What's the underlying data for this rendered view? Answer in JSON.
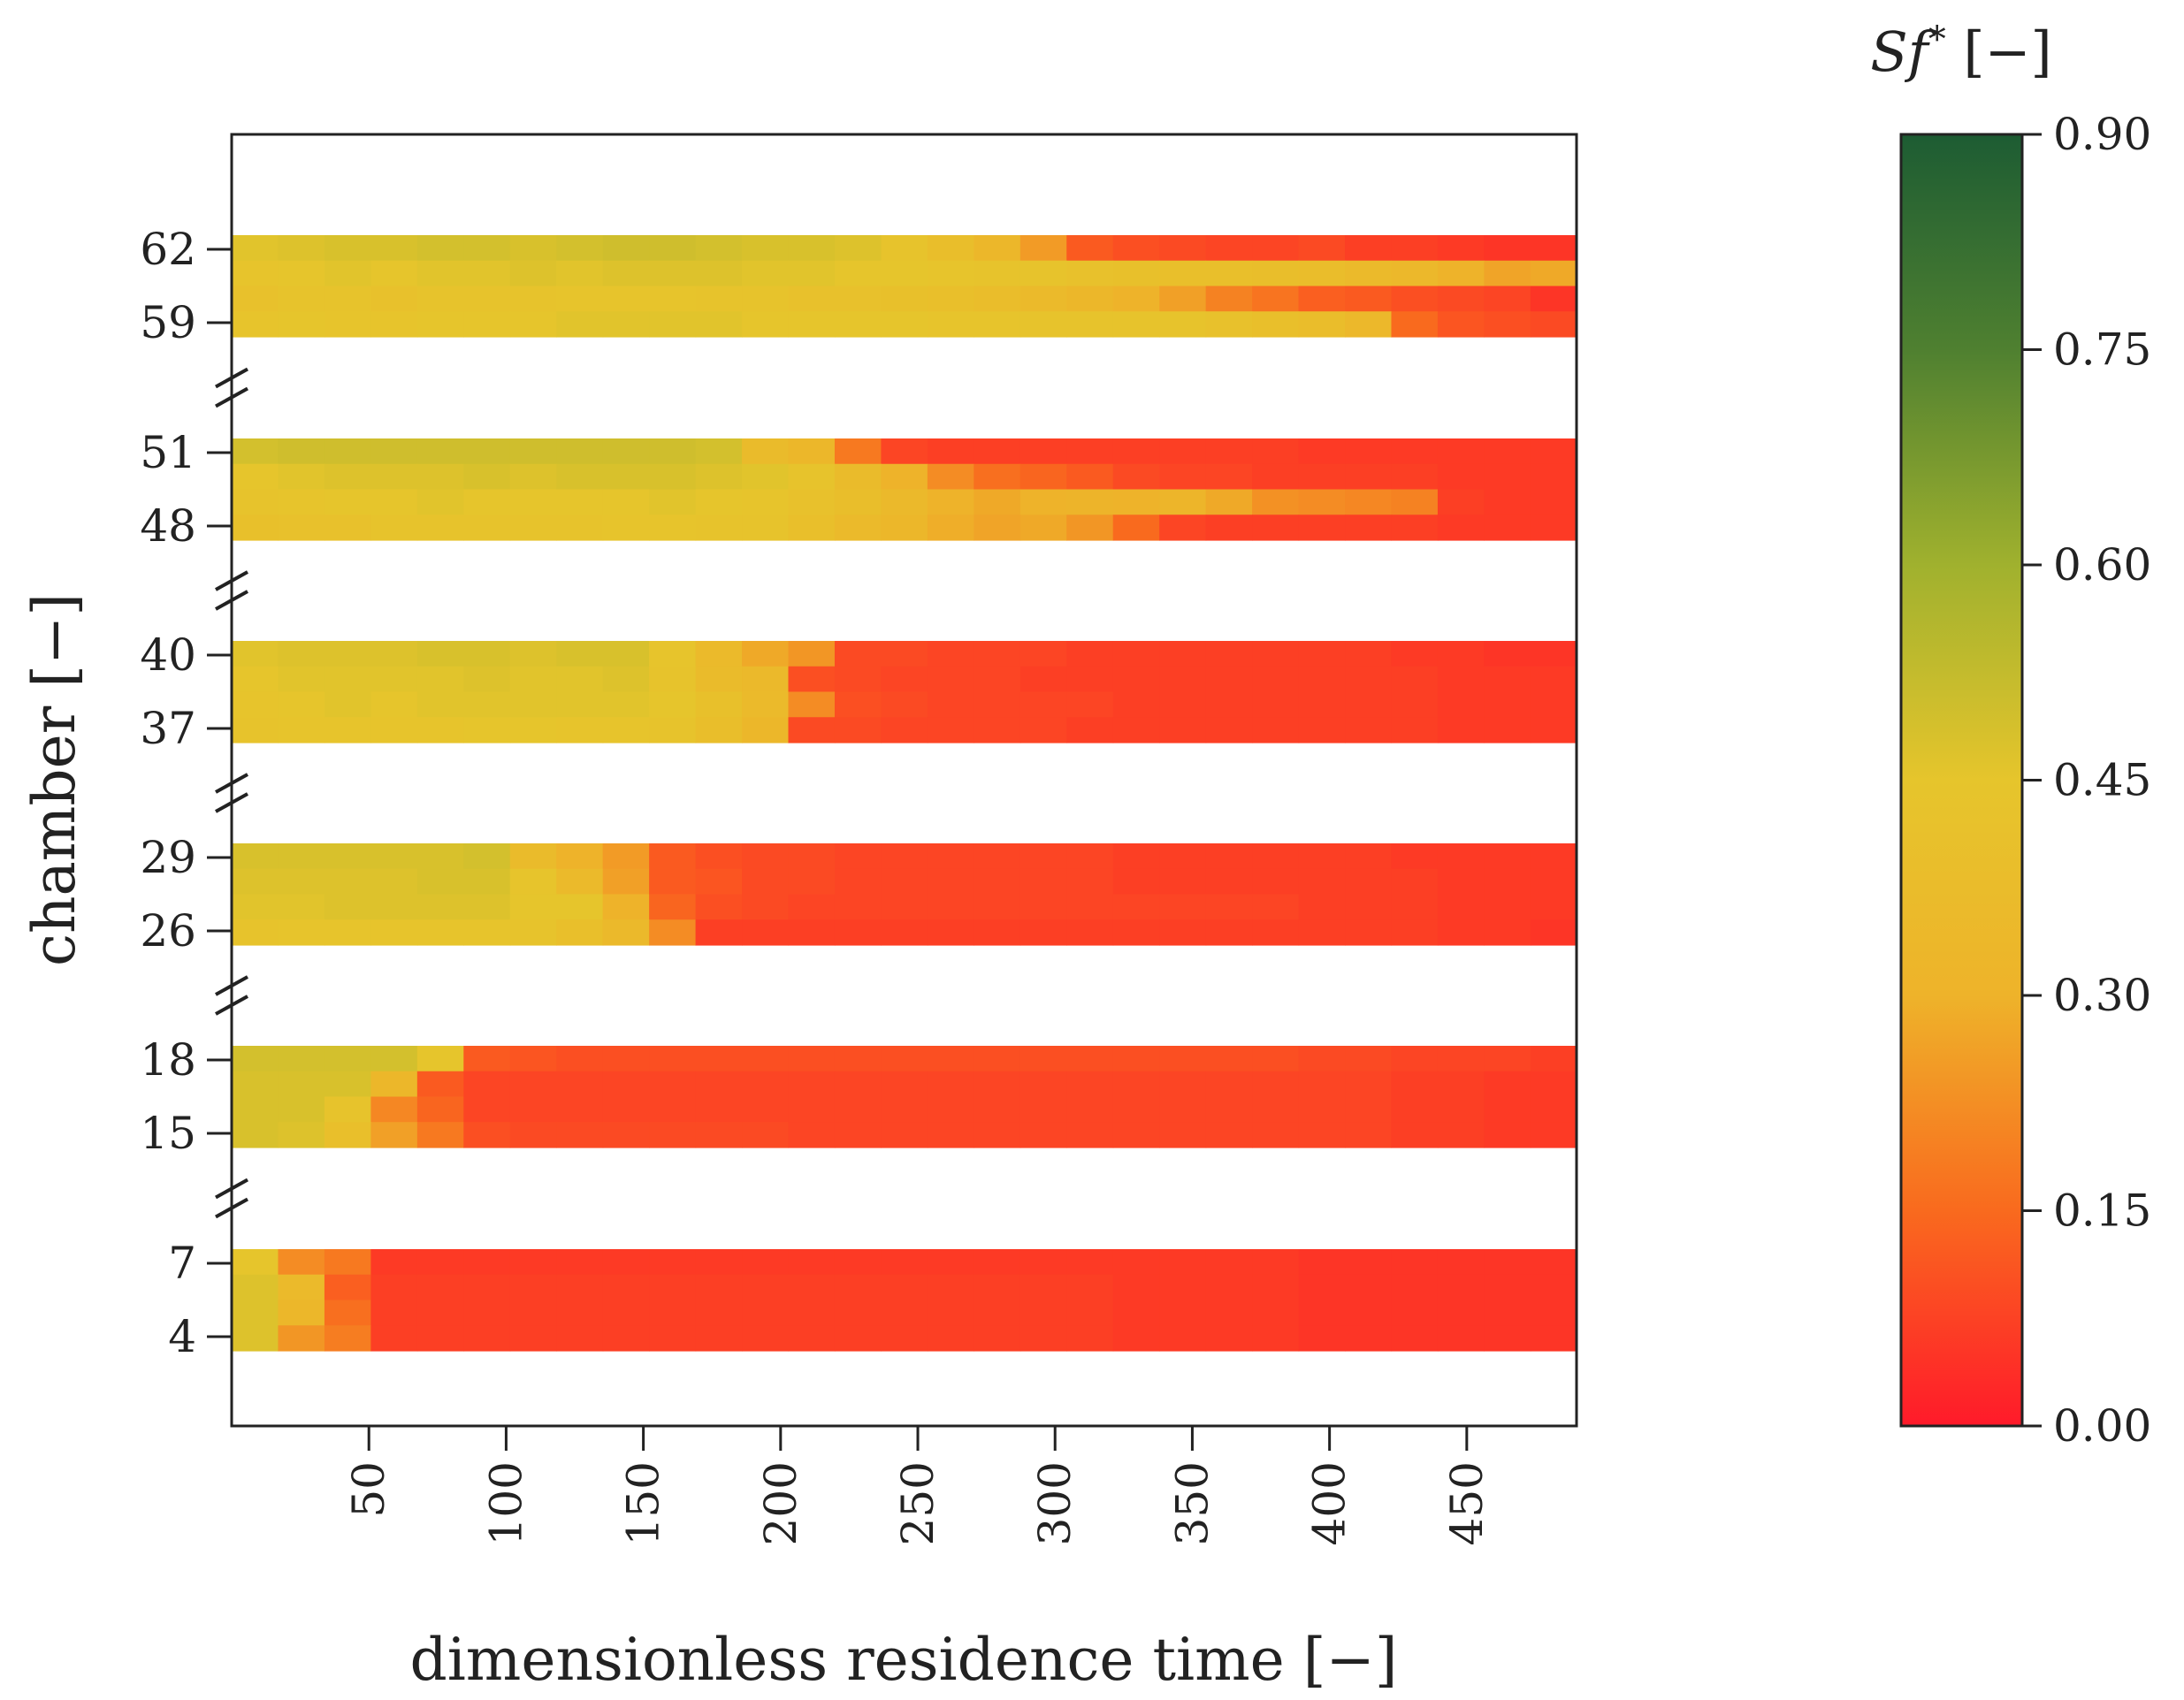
{
  "chart_data": {
    "type": "heatmap",
    "title": "",
    "xlabel": "dimensionless residence time [−]",
    "ylabel": "chamber [−]",
    "xlim": [
      0,
      490
    ],
    "x_ticks": [
      50,
      100,
      150,
      200,
      250,
      300,
      350,
      400,
      450
    ],
    "x_tick_labels": [
      "50",
      "100",
      "150",
      "200",
      "250",
      "300",
      "350",
      "400",
      "450"
    ],
    "bins": 29,
    "bin_width": 16.9,
    "colorbar": {
      "label_main": "Sf",
      "label_sup": "*",
      "label_unit": " [−]",
      "range": [
        0,
        0.9
      ],
      "ticks": [
        0.0,
        0.15,
        0.3,
        0.45,
        0.6,
        0.75,
        0.9
      ],
      "tick_labels": [
        "0.00",
        "0.15",
        "0.30",
        "0.45",
        "0.60",
        "0.75",
        "0.90"
      ],
      "colors": [
        "#ff1a2a",
        "#f96a1e",
        "#eeb32a",
        "#e6c52c",
        "#a0b12e",
        "#4f8030",
        "#1d5c33"
      ]
    },
    "groups": [
      {
        "top_label": "62",
        "bottom_label": "59",
        "rows": [
          [
            0.46,
            0.47,
            0.48,
            0.48,
            0.49,
            0.49,
            0.48,
            0.49,
            0.5,
            0.5,
            0.49,
            0.48,
            0.48,
            0.47,
            0.43,
            0.39,
            0.33,
            0.25,
            0.12,
            0.1,
            0.09,
            0.08,
            0.08,
            0.09,
            0.07,
            0.07,
            0.06,
            0.05,
            0.05
          ],
          [
            0.44,
            0.45,
            0.46,
            0.45,
            0.46,
            0.46,
            0.47,
            0.46,
            0.47,
            0.47,
            0.47,
            0.46,
            0.46,
            0.45,
            0.45,
            0.44,
            0.43,
            0.43,
            0.42,
            0.41,
            0.4,
            0.4,
            0.39,
            0.38,
            0.36,
            0.34,
            0.3,
            0.27,
            0.28
          ],
          [
            0.42,
            0.43,
            0.43,
            0.42,
            0.43,
            0.43,
            0.43,
            0.44,
            0.44,
            0.44,
            0.43,
            0.43,
            0.42,
            0.42,
            0.41,
            0.4,
            0.38,
            0.36,
            0.33,
            0.3,
            0.26,
            0.2,
            0.17,
            0.13,
            0.12,
            0.1,
            0.09,
            0.08,
            0.05
          ],
          [
            0.44,
            0.45,
            0.44,
            0.44,
            0.45,
            0.45,
            0.45,
            0.46,
            0.46,
            0.46,
            0.46,
            0.45,
            0.45,
            0.45,
            0.45,
            0.44,
            0.44,
            0.43,
            0.43,
            0.43,
            0.43,
            0.42,
            0.4,
            0.38,
            0.34,
            0.15,
            0.11,
            0.1,
            0.09
          ]
        ]
      },
      {
        "top_label": "51",
        "bottom_label": "48",
        "rows": [
          [
            0.49,
            0.5,
            0.5,
            0.5,
            0.5,
            0.5,
            0.5,
            0.5,
            0.5,
            0.5,
            0.49,
            0.37,
            0.33,
            0.18,
            0.08,
            0.07,
            0.07,
            0.07,
            0.07,
            0.07,
            0.07,
            0.07,
            0.07,
            0.06,
            0.06,
            0.06,
            0.06,
            0.06,
            0.06
          ],
          [
            0.45,
            0.46,
            0.47,
            0.47,
            0.47,
            0.48,
            0.47,
            0.48,
            0.48,
            0.48,
            0.47,
            0.46,
            0.43,
            0.37,
            0.3,
            0.22,
            0.16,
            0.14,
            0.12,
            0.09,
            0.08,
            0.08,
            0.07,
            0.07,
            0.07,
            0.07,
            0.06,
            0.06,
            0.06
          ],
          [
            0.43,
            0.44,
            0.45,
            0.45,
            0.46,
            0.45,
            0.45,
            0.45,
            0.45,
            0.46,
            0.45,
            0.44,
            0.42,
            0.39,
            0.35,
            0.3,
            0.28,
            0.3,
            0.31,
            0.3,
            0.32,
            0.28,
            0.23,
            0.22,
            0.21,
            0.2,
            0.07,
            0.06,
            0.06
          ],
          [
            0.41,
            0.42,
            0.42,
            0.43,
            0.43,
            0.43,
            0.43,
            0.43,
            0.44,
            0.44,
            0.43,
            0.43,
            0.4,
            0.36,
            0.33,
            0.29,
            0.27,
            0.28,
            0.24,
            0.15,
            0.08,
            0.07,
            0.07,
            0.07,
            0.07,
            0.07,
            0.06,
            0.06,
            0.06
          ]
        ]
      },
      {
        "top_label": "40",
        "bottom_label": "37",
        "rows": [
          [
            0.46,
            0.47,
            0.47,
            0.47,
            0.48,
            0.48,
            0.47,
            0.48,
            0.48,
            0.44,
            0.36,
            0.28,
            0.24,
            0.09,
            0.09,
            0.08,
            0.08,
            0.08,
            0.07,
            0.07,
            0.07,
            0.07,
            0.07,
            0.07,
            0.07,
            0.06,
            0.06,
            0.05,
            0.05
          ],
          [
            0.45,
            0.46,
            0.46,
            0.46,
            0.46,
            0.47,
            0.46,
            0.46,
            0.47,
            0.43,
            0.37,
            0.35,
            0.1,
            0.09,
            0.08,
            0.08,
            0.08,
            0.07,
            0.07,
            0.07,
            0.07,
            0.07,
            0.07,
            0.07,
            0.07,
            0.07,
            0.06,
            0.06,
            0.06
          ],
          [
            0.44,
            0.45,
            0.46,
            0.45,
            0.46,
            0.46,
            0.46,
            0.46,
            0.46,
            0.45,
            0.41,
            0.36,
            0.22,
            0.1,
            0.09,
            0.08,
            0.08,
            0.08,
            0.08,
            0.07,
            0.07,
            0.07,
            0.07,
            0.07,
            0.07,
            0.07,
            0.06,
            0.06,
            0.06
          ],
          [
            0.43,
            0.44,
            0.44,
            0.44,
            0.44,
            0.45,
            0.45,
            0.44,
            0.44,
            0.43,
            0.39,
            0.33,
            0.09,
            0.09,
            0.08,
            0.08,
            0.08,
            0.08,
            0.07,
            0.07,
            0.07,
            0.07,
            0.07,
            0.07,
            0.07,
            0.07,
            0.06,
            0.06,
            0.06
          ]
        ]
      },
      {
        "top_label": "29",
        "bottom_label": "26",
        "rows": [
          [
            0.48,
            0.48,
            0.48,
            0.48,
            0.48,
            0.49,
            0.37,
            0.3,
            0.25,
            0.12,
            0.1,
            0.09,
            0.09,
            0.08,
            0.08,
            0.08,
            0.08,
            0.08,
            0.08,
            0.07,
            0.07,
            0.07,
            0.07,
            0.07,
            0.07,
            0.06,
            0.06,
            0.06,
            0.06
          ],
          [
            0.47,
            0.47,
            0.47,
            0.47,
            0.48,
            0.48,
            0.44,
            0.36,
            0.26,
            0.12,
            0.11,
            0.09,
            0.09,
            0.08,
            0.08,
            0.08,
            0.08,
            0.08,
            0.08,
            0.07,
            0.07,
            0.07,
            0.07,
            0.07,
            0.07,
            0.07,
            0.06,
            0.06,
            0.06
          ],
          [
            0.46,
            0.46,
            0.47,
            0.47,
            0.47,
            0.47,
            0.45,
            0.45,
            0.3,
            0.14,
            0.1,
            0.09,
            0.08,
            0.08,
            0.08,
            0.08,
            0.08,
            0.08,
            0.08,
            0.08,
            0.08,
            0.08,
            0.08,
            0.07,
            0.07,
            0.07,
            0.06,
            0.06,
            0.06
          ],
          [
            0.43,
            0.44,
            0.44,
            0.44,
            0.44,
            0.44,
            0.43,
            0.4,
            0.35,
            0.22,
            0.07,
            0.07,
            0.07,
            0.07,
            0.07,
            0.07,
            0.07,
            0.07,
            0.07,
            0.07,
            0.07,
            0.07,
            0.07,
            0.07,
            0.07,
            0.07,
            0.06,
            0.06,
            0.05
          ]
        ]
      },
      {
        "top_label": "18",
        "bottom_label": "15",
        "rows": [
          [
            0.49,
            0.49,
            0.49,
            0.49,
            0.45,
            0.12,
            0.11,
            0.1,
            0.1,
            0.1,
            0.1,
            0.1,
            0.1,
            0.1,
            0.1,
            0.1,
            0.1,
            0.1,
            0.1,
            0.1,
            0.1,
            0.1,
            0.1,
            0.09,
            0.09,
            0.08,
            0.08,
            0.08,
            0.07
          ],
          [
            0.48,
            0.48,
            0.48,
            0.33,
            0.12,
            0.08,
            0.08,
            0.08,
            0.08,
            0.08,
            0.08,
            0.08,
            0.08,
            0.08,
            0.08,
            0.08,
            0.08,
            0.08,
            0.08,
            0.08,
            0.08,
            0.08,
            0.08,
            0.08,
            0.08,
            0.07,
            0.07,
            0.06,
            0.06
          ],
          [
            0.48,
            0.48,
            0.43,
            0.21,
            0.14,
            0.08,
            0.08,
            0.08,
            0.08,
            0.08,
            0.08,
            0.08,
            0.08,
            0.08,
            0.08,
            0.08,
            0.08,
            0.08,
            0.08,
            0.08,
            0.08,
            0.08,
            0.08,
            0.08,
            0.08,
            0.07,
            0.07,
            0.06,
            0.06
          ],
          [
            0.48,
            0.47,
            0.4,
            0.26,
            0.18,
            0.1,
            0.09,
            0.09,
            0.09,
            0.09,
            0.09,
            0.09,
            0.08,
            0.08,
            0.08,
            0.08,
            0.08,
            0.08,
            0.08,
            0.08,
            0.08,
            0.08,
            0.08,
            0.08,
            0.08,
            0.07,
            0.07,
            0.06,
            0.06
          ]
        ]
      },
      {
        "top_label": "7",
        "bottom_label": "4",
        "rows": [
          [
            0.45,
            0.22,
            0.18,
            0.06,
            0.06,
            0.06,
            0.06,
            0.06,
            0.06,
            0.06,
            0.06,
            0.06,
            0.06,
            0.06,
            0.06,
            0.06,
            0.06,
            0.06,
            0.06,
            0.06,
            0.06,
            0.06,
            0.06,
            0.05,
            0.05,
            0.05,
            0.05,
            0.05,
            0.05
          ],
          [
            0.47,
            0.36,
            0.13,
            0.07,
            0.07,
            0.07,
            0.07,
            0.07,
            0.07,
            0.07,
            0.07,
            0.07,
            0.07,
            0.07,
            0.07,
            0.07,
            0.07,
            0.07,
            0.07,
            0.06,
            0.06,
            0.06,
            0.06,
            0.05,
            0.05,
            0.05,
            0.05,
            0.05,
            0.05
          ],
          [
            0.47,
            0.33,
            0.16,
            0.07,
            0.07,
            0.07,
            0.07,
            0.07,
            0.07,
            0.07,
            0.07,
            0.07,
            0.07,
            0.07,
            0.07,
            0.07,
            0.07,
            0.07,
            0.07,
            0.06,
            0.06,
            0.06,
            0.06,
            0.05,
            0.05,
            0.05,
            0.05,
            0.05,
            0.05
          ],
          [
            0.47,
            0.24,
            0.19,
            0.07,
            0.07,
            0.07,
            0.07,
            0.07,
            0.07,
            0.07,
            0.07,
            0.07,
            0.07,
            0.07,
            0.07,
            0.07,
            0.07,
            0.07,
            0.07,
            0.06,
            0.06,
            0.06,
            0.06,
            0.05,
            0.05,
            0.05,
            0.05,
            0.05,
            0.05
          ]
        ]
      }
    ]
  }
}
